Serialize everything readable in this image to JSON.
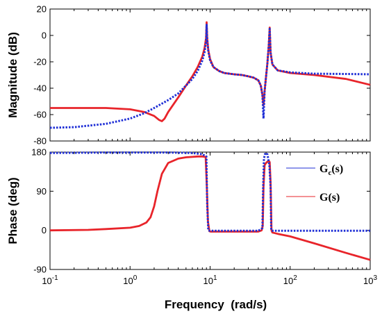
{
  "colors": {
    "gc": "#1f2fd6",
    "g": "#e8242a",
    "axes": "#000000"
  },
  "chart_data": [
    {
      "type": "line",
      "panel": "magnitude",
      "xscale": "log",
      "xlim": [
        0.1,
        1000
      ],
      "ylim": [
        -80,
        20
      ],
      "yticks": [
        20,
        0,
        -20,
        -40,
        -60,
        -80
      ],
      "ylabel": "Magnitude (dB)",
      "xlabel": "",
      "grid": false,
      "series": [
        {
          "name": "",
          "color_key": "gc",
          "style": "dotted",
          "x": [
            0.1,
            0.2,
            0.5,
            1,
            1.5,
            2,
            3,
            4,
            5,
            6,
            7,
            8,
            8.5,
            8.9,
            9.05,
            9.2,
            9.5,
            10,
            11,
            13,
            15,
            20,
            25,
            30,
            35,
            40,
            43,
            45,
            46.5,
            48,
            50,
            52,
            54,
            55.5,
            57,
            60,
            70,
            100,
            200,
            500,
            1000
          ],
          "y": [
            -70,
            -69.5,
            -67,
            -63,
            -59,
            -55,
            -49,
            -44,
            -38,
            -33,
            -27,
            -19,
            -13,
            -5,
            8,
            -3,
            -12,
            -19,
            -24,
            -27,
            -28.5,
            -29.5,
            -30,
            -31,
            -32,
            -34,
            -38,
            -45,
            -63,
            -42,
            -31,
            -21,
            -8,
            5,
            -13,
            -22,
            -26.5,
            -28,
            -29,
            -29.2,
            -29.5
          ]
        },
        {
          "name": "",
          "color_key": "g",
          "style": "solid",
          "x": [
            0.1,
            0.2,
            0.5,
            1,
            1.5,
            2,
            2.3,
            2.5,
            2.7,
            3,
            4,
            5,
            6,
            7,
            8,
            8.5,
            8.9,
            9.05,
            9.2,
            9.5,
            10,
            11,
            13,
            15,
            20,
            25,
            30,
            35,
            40,
            43,
            45,
            46.5,
            48,
            50,
            52,
            54,
            55.5,
            57,
            60,
            70,
            100,
            200,
            500,
            1000
          ],
          "y": [
            -55,
            -55,
            -55,
            -56,
            -58,
            -61,
            -64,
            -65,
            -63,
            -58,
            -47,
            -38,
            -31,
            -24,
            -16,
            -10,
            -2,
            10,
            -2,
            -11,
            -18,
            -24,
            -27,
            -28.5,
            -29.5,
            -30,
            -31,
            -32,
            -34,
            -38,
            -45,
            -53,
            -42,
            -31,
            -21,
            -8,
            6,
            -13,
            -22,
            -26.5,
            -28.5,
            -30,
            -33,
            -37.5
          ]
        }
      ]
    },
    {
      "type": "line",
      "panel": "phase",
      "xscale": "log",
      "xlim": [
        0.1,
        1000
      ],
      "ylim": [
        -90,
        180
      ],
      "yticks": [
        180,
        90,
        0,
        -90
      ],
      "ytick_labels": [
        "180",
        "90",
        "0",
        "-90"
      ],
      "ylabel": "Phase (deg)",
      "xlabel": "Frequency  (rad/s)",
      "xticks": [
        0.1,
        1,
        10,
        100,
        1000
      ],
      "xtick_labels": [
        {
          "base": "10",
          "exp": "-1"
        },
        {
          "base": "10",
          "exp": "0"
        },
        {
          "base": "10",
          "exp": "1"
        },
        {
          "base": "10",
          "exp": "2"
        },
        {
          "base": "10",
          "exp": "3"
        }
      ],
      "grid": false,
      "legend_position": "right",
      "series": [
        {
          "name": "G₍ₑ₎",
          "color_key": "gc",
          "style": "dotted",
          "x": [
            0.1,
            0.5,
            1,
            3,
            6,
            8,
            9.0,
            9.2,
            9.5,
            10,
            20,
            40,
            45,
            46,
            47,
            49,
            52,
            55,
            57,
            58,
            60,
            100,
            1000
          ],
          "y": [
            178,
            179,
            179,
            179,
            178,
            175,
            170,
            60,
            0,
            -1,
            -1,
            -1,
            5,
            100,
            165,
            178,
            175,
            150,
            100,
            0,
            -1,
            -1,
            -1
          ]
        },
        {
          "name": "G(s)",
          "color_key": "g",
          "style": "solid",
          "x": [
            0.1,
            0.3,
            0.5,
            1,
            1.3,
            1.6,
            1.8,
            2,
            2.2,
            2.5,
            3,
            4,
            5,
            6,
            7,
            8,
            8.8,
            9.1,
            9.4,
            9.8,
            10.2,
            15,
            30,
            40,
            44,
            45.5,
            46.5,
            48,
            50,
            52,
            54,
            55.5,
            57,
            58.5,
            60,
            70,
            100,
            200,
            500,
            1000
          ],
          "y": [
            0,
            1,
            3,
            6,
            10,
            18,
            30,
            55,
            90,
            130,
            155,
            165,
            168,
            169,
            170,
            170,
            169,
            100,
            20,
            -2,
            -3,
            -3,
            -3,
            -3,
            0,
            10,
            100,
            150,
            155,
            158,
            160,
            157,
            110,
            0,
            -5,
            -8,
            -14,
            -30,
            -52,
            -68
          ]
        }
      ]
    }
  ],
  "legend": {
    "gc_main": "G",
    "gc_sub": "c",
    "gc_tail": "(s)",
    "g_label": "G(s)"
  }
}
